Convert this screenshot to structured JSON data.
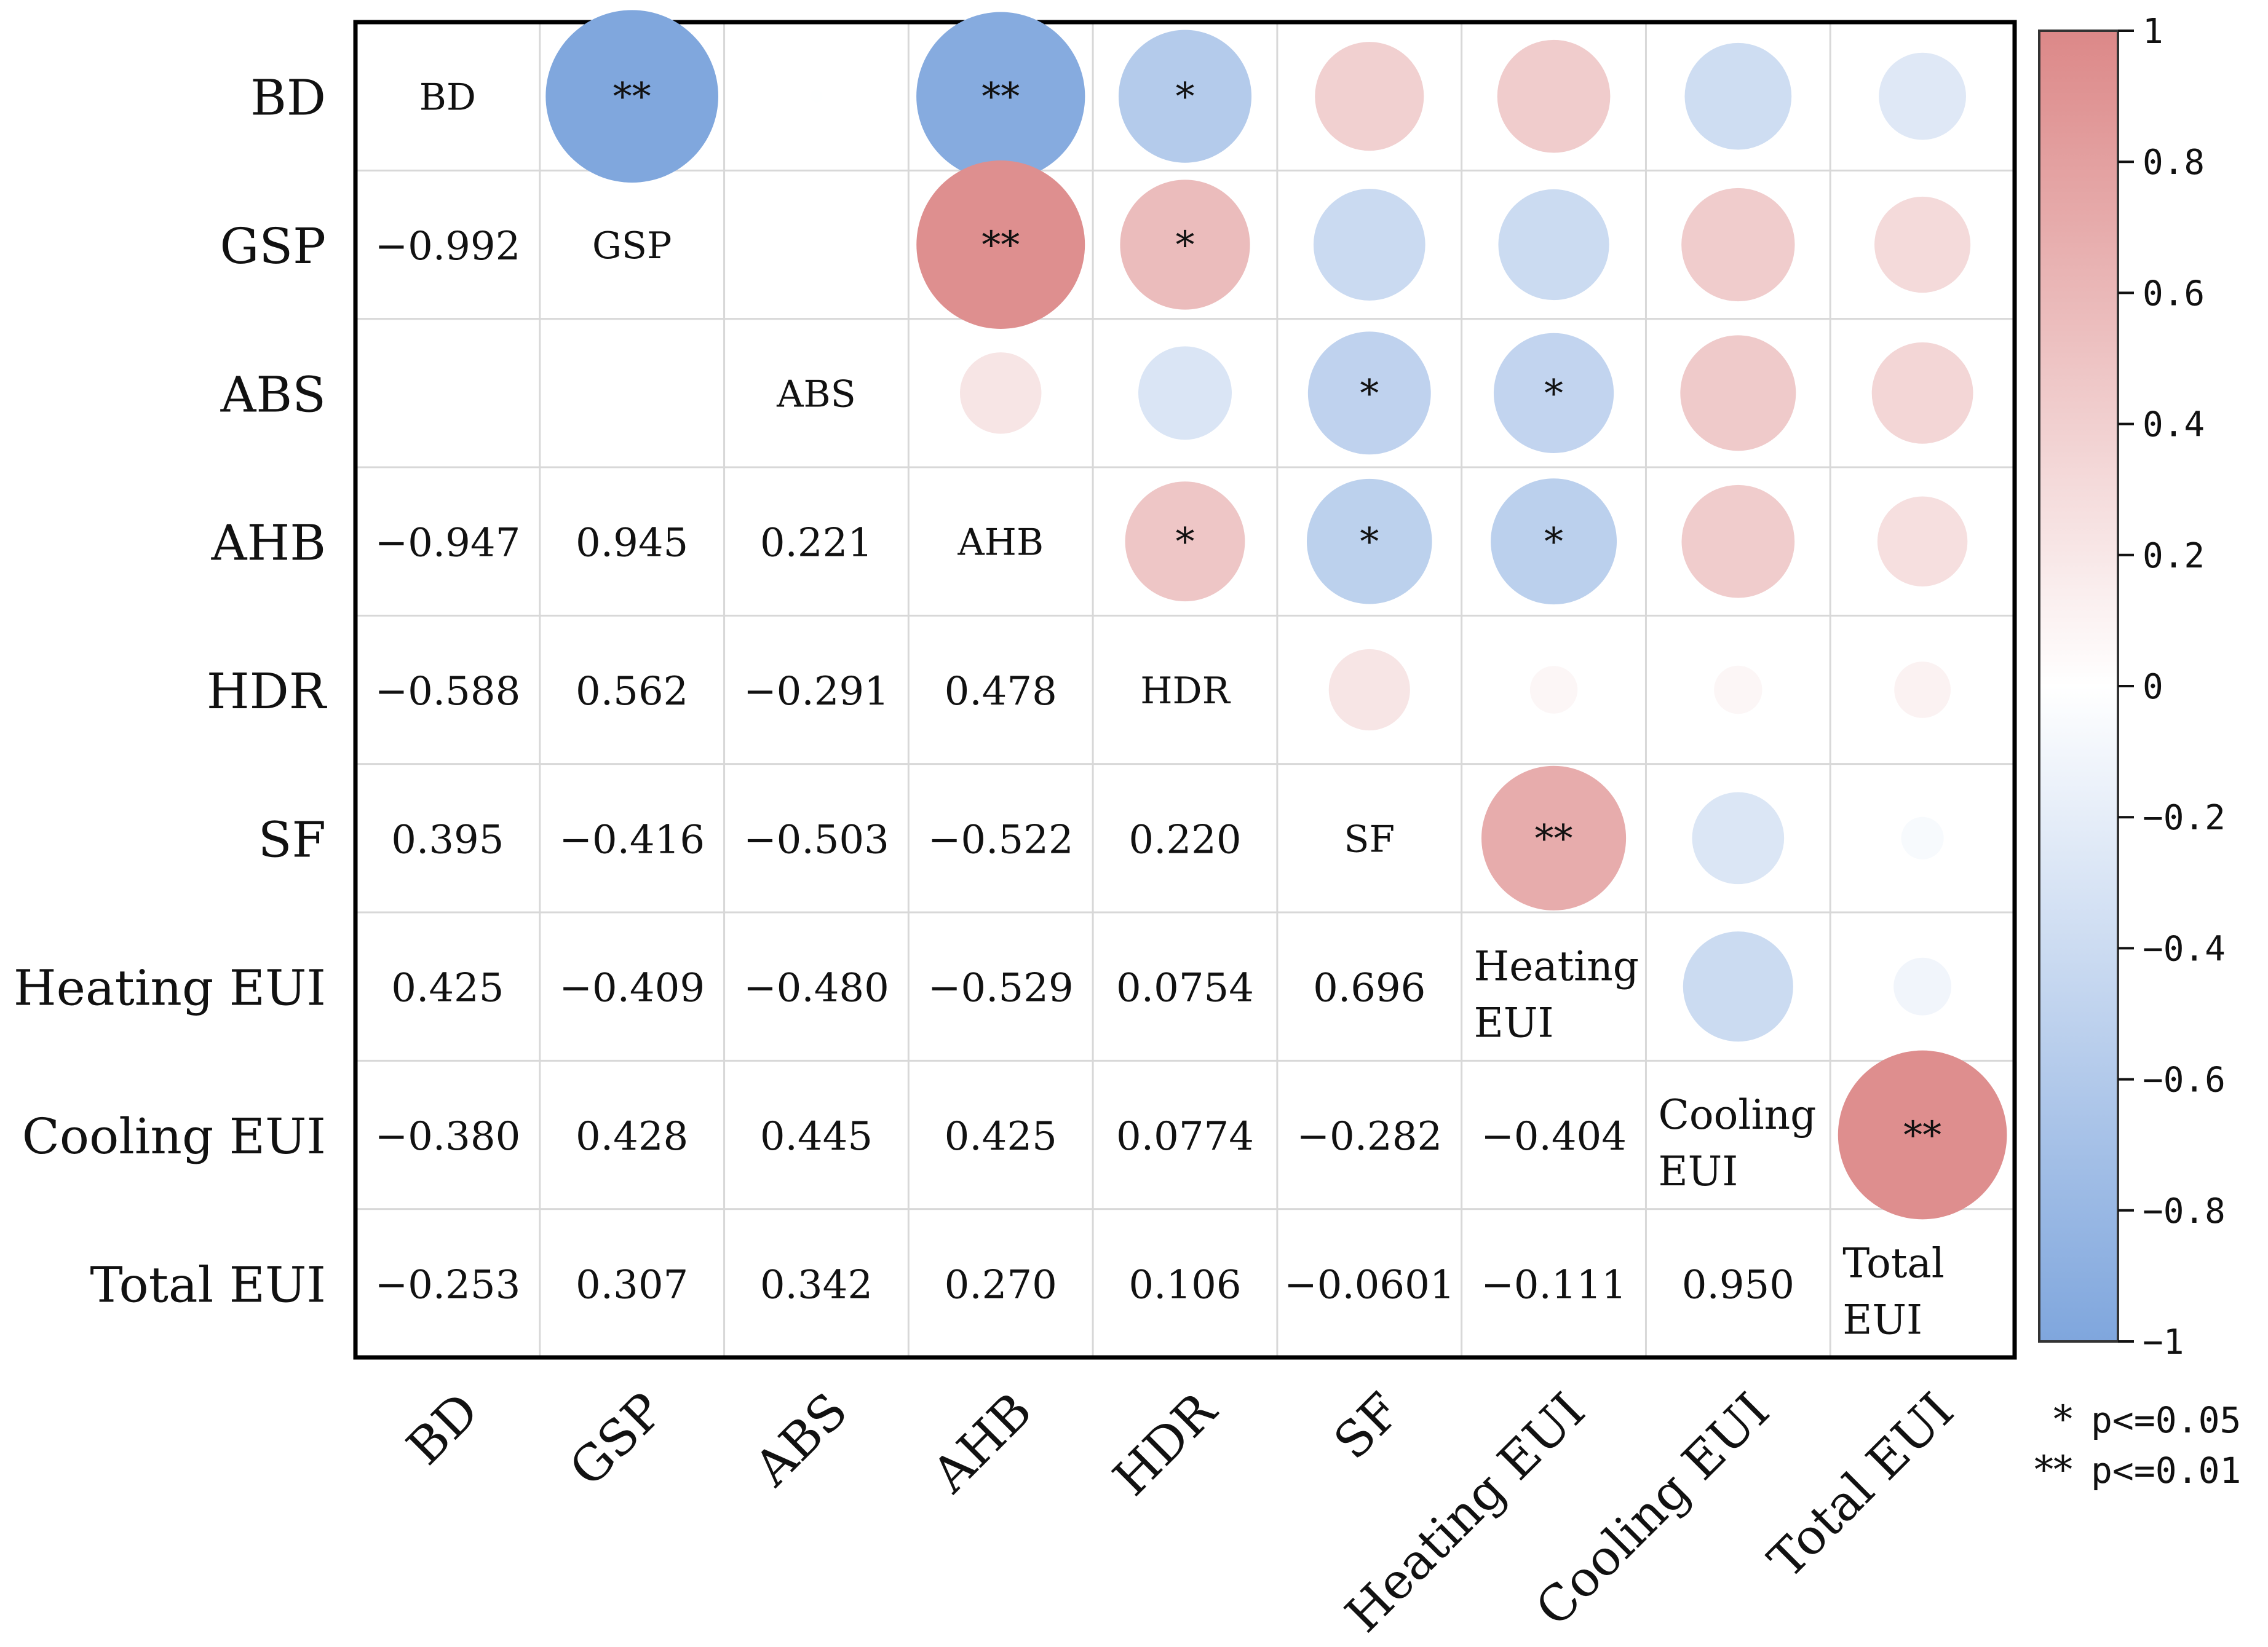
{
  "chart_data": {
    "type": "heatmap",
    "title": "",
    "variables": [
      {
        "short": "BD",
        "axis": "BD",
        "diag": [
          "BD"
        ]
      },
      {
        "short": "GSP",
        "axis": "GSP",
        "diag": [
          "GSP"
        ]
      },
      {
        "short": "ABS",
        "axis": "ABS",
        "diag": [
          "ABS"
        ]
      },
      {
        "short": "AHB",
        "axis": "AHB",
        "diag": [
          "AHB"
        ]
      },
      {
        "short": "HDR",
        "axis": "HDR",
        "diag": [
          "HDR"
        ]
      },
      {
        "short": "SF",
        "axis": "SF",
        "diag": [
          "SF"
        ]
      },
      {
        "short": "Heating EUI",
        "axis": "Heating EUI",
        "diag": [
          "Heating",
          "EUI"
        ]
      },
      {
        "short": "Cooling EUI",
        "axis": "Cooling EUI",
        "diag": [
          "Cooling",
          "EUI"
        ]
      },
      {
        "short": "Total EUI",
        "axis": "Total EUI",
        "diag": [
          "Total",
          "EUI"
        ]
      }
    ],
    "lower_triangle_values": [
      [],
      [
        "−0.992"
      ],
      [
        "",
        ""
      ],
      [
        "−0.947",
        "0.945",
        "0.221"
      ],
      [
        "−0.588",
        "0.562",
        "−0.291",
        "0.478"
      ],
      [
        "0.395",
        "−0.416",
        "−0.503",
        "−0.522",
        "0.220"
      ],
      [
        "0.425",
        "−0.409",
        "−0.480",
        "−0.529",
        "0.0754",
        "0.696"
      ],
      [
        "−0.380",
        "0.428",
        "0.445",
        "0.425",
        "0.0774",
        "−0.282",
        "−0.404"
      ],
      [
        "−0.253",
        "0.307",
        "0.342",
        "0.270",
        "0.106",
        "−0.0601",
        "−0.111",
        "0.950"
      ]
    ],
    "upper_triangle": [
      {
        "row": 0,
        "col": 1,
        "r": -0.992,
        "sig": "**"
      },
      {
        "row": 0,
        "col": 2,
        "r": -0.005,
        "sig": ""
      },
      {
        "row": 0,
        "col": 3,
        "r": -0.947,
        "sig": "**"
      },
      {
        "row": 0,
        "col": 4,
        "r": -0.588,
        "sig": "*"
      },
      {
        "row": 0,
        "col": 5,
        "r": 0.395,
        "sig": ""
      },
      {
        "row": 0,
        "col": 6,
        "r": 0.425,
        "sig": ""
      },
      {
        "row": 0,
        "col": 7,
        "r": -0.38,
        "sig": ""
      },
      {
        "row": 0,
        "col": 8,
        "r": -0.253,
        "sig": ""
      },
      {
        "row": 1,
        "col": 2,
        "r": 0.003,
        "sig": ""
      },
      {
        "row": 1,
        "col": 3,
        "r": 0.945,
        "sig": "**"
      },
      {
        "row": 1,
        "col": 4,
        "r": 0.562,
        "sig": "*"
      },
      {
        "row": 1,
        "col": 5,
        "r": -0.416,
        "sig": ""
      },
      {
        "row": 1,
        "col": 6,
        "r": -0.409,
        "sig": ""
      },
      {
        "row": 1,
        "col": 7,
        "r": 0.428,
        "sig": ""
      },
      {
        "row": 1,
        "col": 8,
        "r": 0.307,
        "sig": ""
      },
      {
        "row": 2,
        "col": 3,
        "r": 0.221,
        "sig": ""
      },
      {
        "row": 2,
        "col": 4,
        "r": -0.291,
        "sig": ""
      },
      {
        "row": 2,
        "col": 5,
        "r": -0.503,
        "sig": "*"
      },
      {
        "row": 2,
        "col": 6,
        "r": -0.48,
        "sig": "*"
      },
      {
        "row": 2,
        "col": 7,
        "r": 0.445,
        "sig": ""
      },
      {
        "row": 2,
        "col": 8,
        "r": 0.342,
        "sig": ""
      },
      {
        "row": 3,
        "col": 4,
        "r": 0.478,
        "sig": "*"
      },
      {
        "row": 3,
        "col": 5,
        "r": -0.522,
        "sig": "*"
      },
      {
        "row": 3,
        "col": 6,
        "r": -0.529,
        "sig": "*"
      },
      {
        "row": 3,
        "col": 7,
        "r": 0.425,
        "sig": ""
      },
      {
        "row": 3,
        "col": 8,
        "r": 0.27,
        "sig": ""
      },
      {
        "row": 4,
        "col": 5,
        "r": 0.22,
        "sig": ""
      },
      {
        "row": 4,
        "col": 6,
        "r": 0.0754,
        "sig": ""
      },
      {
        "row": 4,
        "col": 7,
        "r": 0.0774,
        "sig": ""
      },
      {
        "row": 4,
        "col": 8,
        "r": 0.106,
        "sig": ""
      },
      {
        "row": 5,
        "col": 6,
        "r": 0.696,
        "sig": "**"
      },
      {
        "row": 5,
        "col": 7,
        "r": -0.282,
        "sig": ""
      },
      {
        "row": 5,
        "col": 8,
        "r": -0.0601,
        "sig": ""
      },
      {
        "row": 6,
        "col": 7,
        "r": -0.404,
        "sig": ""
      },
      {
        "row": 6,
        "col": 8,
        "r": -0.111,
        "sig": ""
      },
      {
        "row": 7,
        "col": 8,
        "r": 0.95,
        "sig": "**"
      }
    ],
    "colorbar": {
      "range": [
        -1,
        1
      ],
      "ticks": [
        "1",
        "0.8",
        "0.6",
        "0.4",
        "0.2",
        "0",
        "−0.2",
        "−0.4",
        "−0.6",
        "−0.8",
        "−1"
      ],
      "colors": {
        "positive": "#dc8888",
        "neutral": "#ffffff",
        "negative": "#7fa6dd"
      }
    },
    "legend": {
      "placement": "bottom-right",
      "entries": [
        {
          "symbol": "*",
          "text": "p<=0.05"
        },
        {
          "symbol": "**",
          "text": "p<=0.01"
        }
      ]
    },
    "text_colors": {
      "strong_positive": "#e01010",
      "strong_negative": "#1a1a9a"
    }
  }
}
